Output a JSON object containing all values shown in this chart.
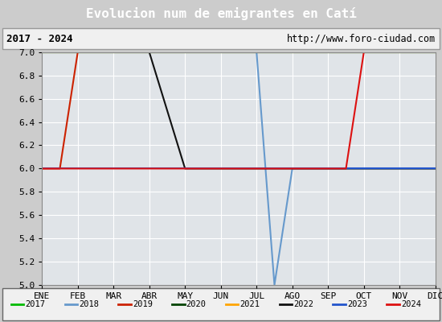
{
  "title": "Evolucion num de emigrantes en Catí",
  "subtitle_left": "2017 - 2024",
  "subtitle_right": "http://www.foro-ciudad.com",
  "x_labels": [
    "ENE",
    "FEB",
    "MAR",
    "ABR",
    "MAY",
    "JUN",
    "JUL",
    "AGO",
    "SEP",
    "OCT",
    "NOV",
    "DIC"
  ],
  "ylim": [
    5.0,
    7.0
  ],
  "yticks": [
    5.0,
    5.2,
    5.4,
    5.6,
    5.8,
    6.0,
    6.2,
    6.4,
    6.6,
    6.8,
    7.0
  ],
  "series": [
    {
      "year": "2017",
      "color": "#00bb00",
      "linewidth": 1.5,
      "x": [
        1,
        12
      ],
      "y": [
        7.0,
        7.0
      ]
    },
    {
      "year": "2018",
      "color": "#6699cc",
      "linewidth": 1.5,
      "x": [
        1,
        7.0,
        7.5,
        8.0,
        12
      ],
      "y": [
        7.0,
        7.0,
        5.0,
        6.0,
        6.0
      ]
    },
    {
      "year": "2019",
      "color": "#cc2200",
      "linewidth": 1.5,
      "x": [
        1,
        1.5,
        2.0,
        12
      ],
      "y": [
        6.0,
        6.0,
        7.0,
        7.0
      ]
    },
    {
      "year": "2020",
      "color": "#004400",
      "linewidth": 1.5,
      "x": [
        1,
        12
      ],
      "y": [
        7.0,
        7.0
      ]
    },
    {
      "year": "2021",
      "color": "#FFA500",
      "linewidth": 1.5,
      "x": [
        1,
        12
      ],
      "y": [
        7.0,
        7.0
      ]
    },
    {
      "year": "2022",
      "color": "#111111",
      "linewidth": 1.5,
      "x": [
        1,
        4.0,
        5.0,
        12
      ],
      "y": [
        7.0,
        7.0,
        6.0,
        6.0
      ]
    },
    {
      "year": "2023",
      "color": "#2255cc",
      "linewidth": 1.5,
      "x": [
        1,
        12
      ],
      "y": [
        6.0,
        6.0
      ]
    },
    {
      "year": "2024",
      "color": "#dd1111",
      "linewidth": 1.5,
      "x": [
        1,
        9.5,
        10.0,
        12
      ],
      "y": [
        6.0,
        6.0,
        7.0,
        7.0
      ]
    }
  ],
  "background_color": "#cccccc",
  "plot_bg_color": "#e0e4e8",
  "title_bg_color": "#4477aa",
  "title_fg_color": "#ffffff",
  "grid_color": "#ffffff",
  "legend_bg_color": "#f0f0f0",
  "subtitle_bg_color": "#f0f0f0"
}
